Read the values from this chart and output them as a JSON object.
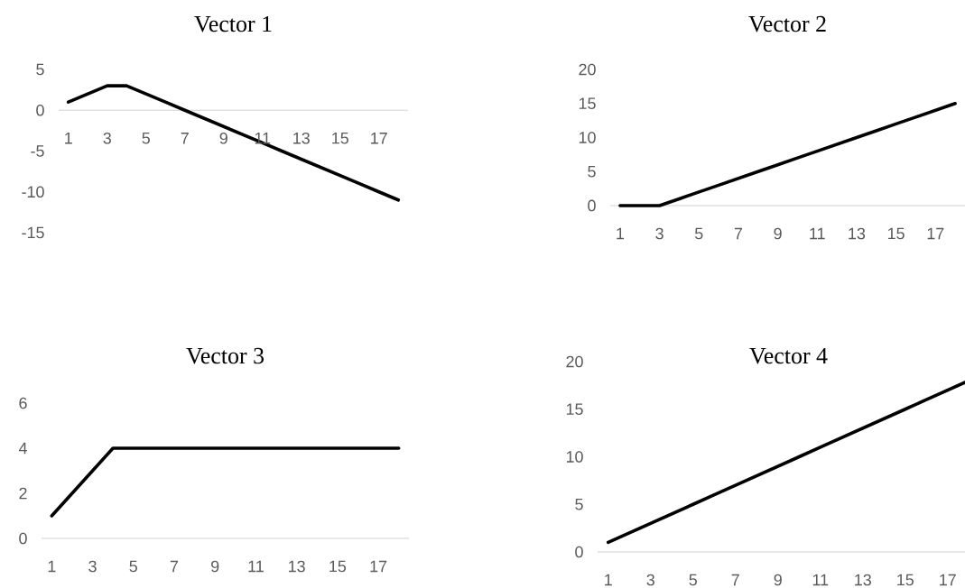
{
  "chart_data": [
    {
      "type": "line",
      "title": "Vector 1",
      "categories": [
        "1",
        null,
        "3",
        null,
        "5",
        null,
        "7",
        null,
        "9",
        null,
        "11",
        null,
        "13",
        null,
        "15",
        null,
        "17",
        null
      ],
      "values": [
        1,
        2,
        3,
        3,
        2,
        1,
        0,
        -1,
        -2,
        -3,
        -4,
        -5,
        -6,
        -7,
        -8,
        -9,
        -10,
        -11
      ],
      "color": "#000000",
      "marker": "none",
      "ylim": [
        -15,
        5
      ],
      "yticks": [
        -15,
        -10,
        -5,
        0,
        5
      ]
    },
    {
      "type": "line",
      "title": "Vector 2",
      "categories": [
        "1",
        null,
        "3",
        null,
        "5",
        null,
        "7",
        null,
        "9",
        null,
        "11",
        null,
        "13",
        null,
        "15",
        null,
        "17",
        null
      ],
      "values": [
        0,
        0,
        0,
        1,
        2,
        3,
        4,
        5,
        6,
        7,
        8,
        9,
        10,
        11,
        12,
        13,
        14,
        15
      ],
      "color": "#000000",
      "marker": "none",
      "ylim": [
        0,
        20
      ],
      "yticks": [
        0,
        5,
        10,
        15,
        20
      ]
    },
    {
      "type": "line",
      "title": "Vector 3",
      "categories": [
        "1",
        null,
        "3",
        null,
        "5",
        null,
        "7",
        null,
        "9",
        null,
        "11",
        null,
        "13",
        null,
        "15",
        null,
        "17",
        null
      ],
      "values": [
        1,
        2,
        3,
        4,
        4,
        4,
        4,
        4,
        4,
        4,
        4,
        4,
        4,
        4,
        4,
        4,
        4,
        4
      ],
      "color": "#000000",
      "marker": "none",
      "ylim": [
        0,
        6
      ],
      "yticks": [
        0,
        2,
        4,
        6
      ]
    },
    {
      "type": "line",
      "title": "Vector 4",
      "categories": [
        "1",
        null,
        "3",
        null,
        "5",
        null,
        "7",
        null,
        "9",
        null,
        "11",
        null,
        "13",
        null,
        "15",
        null,
        "17",
        null
      ],
      "values": [
        1,
        2,
        3,
        4,
        5,
        6,
        7,
        8,
        9,
        10,
        11,
        12,
        13,
        14,
        15,
        16,
        17,
        18
      ],
      "color": "#000000",
      "marker": "none",
      "ylim": [
        0,
        20
      ],
      "yticks": [
        0,
        5,
        10,
        15,
        20
      ]
    }
  ]
}
